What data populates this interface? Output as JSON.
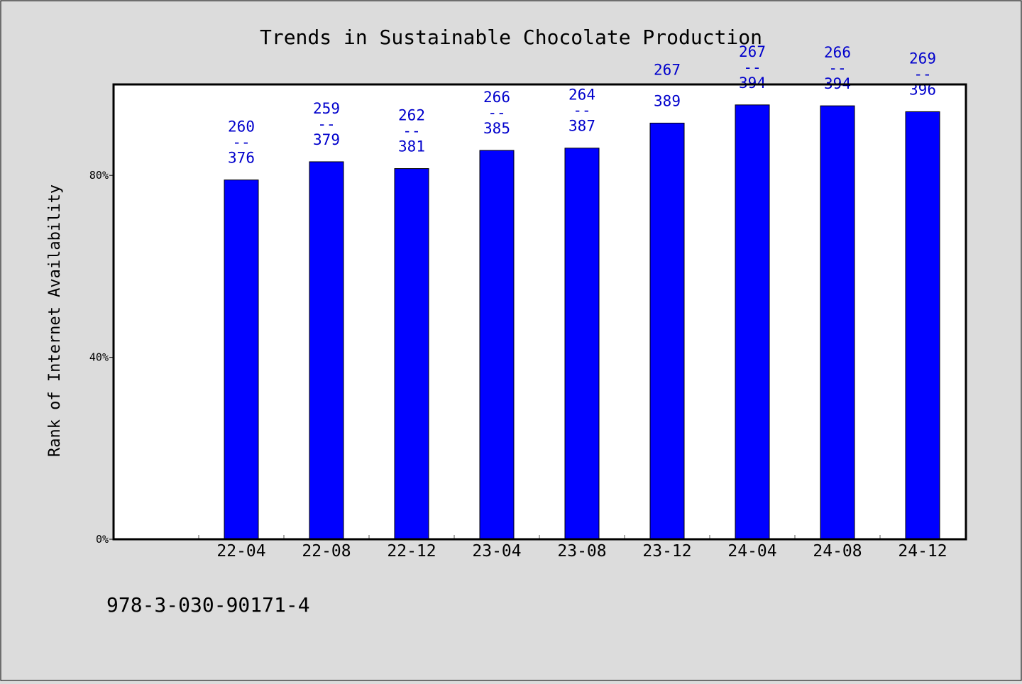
{
  "chart_data": {
    "type": "bar",
    "title": "Trends in Sustainable Chocolate Production",
    "xlabel": "",
    "ylabel": "Rank of Internet Availability",
    "ylim": [
      0,
      100
    ],
    "yticks": [
      "0%",
      "40%",
      "80%"
    ],
    "ytick_values": [
      0,
      40,
      80
    ],
    "categories": [
      "22-04",
      "22-08",
      "22-12",
      "23-04",
      "23-08",
      "23-12",
      "24-04",
      "24-08",
      "24-12"
    ],
    "values": [
      79,
      83,
      81.5,
      85.5,
      86,
      91.5,
      95.5,
      95.3,
      94
    ],
    "label_top": [
      "260",
      "259",
      "262",
      "266",
      "264",
      "267",
      "267",
      "266",
      "269"
    ],
    "label_sep": [
      "--",
      "--",
      "--",
      "--",
      "--",
      "",
      "--",
      "--",
      "--"
    ],
    "label_bottom": [
      "376",
      "379",
      "381",
      "385",
      "387",
      "389",
      "394",
      "394",
      "396"
    ],
    "grid": false,
    "colors": {
      "bar": "#0000ff",
      "label": "#0000cc",
      "background": "#dcdcdc",
      "plot": "#ffffff"
    }
  },
  "footer": {
    "isbn": "978-3-030-90171-4"
  }
}
